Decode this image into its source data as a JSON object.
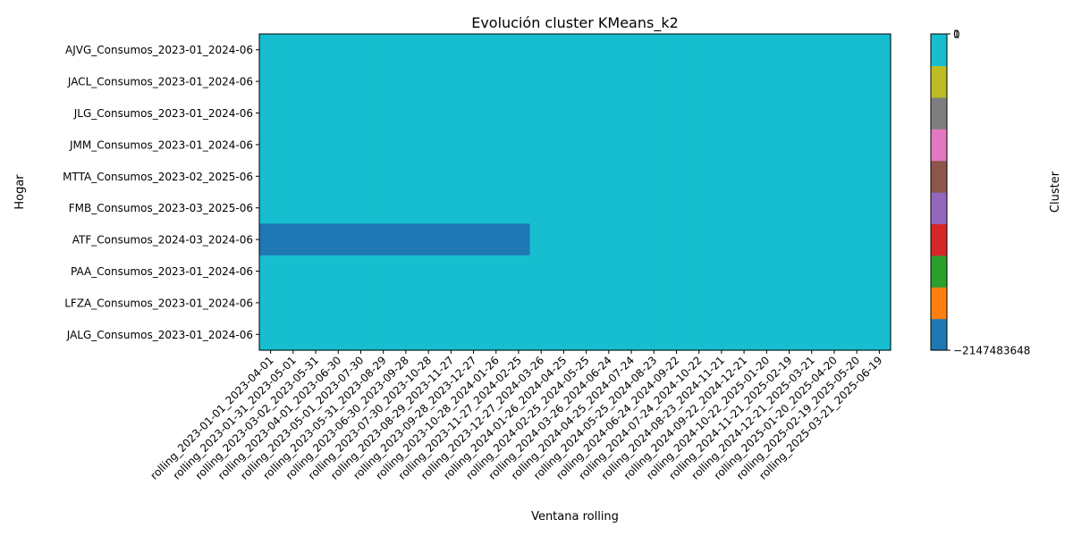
{
  "chart_data": {
    "type": "heatmap",
    "title": "Evolución cluster KMeans_k2",
    "xlabel": "Ventana rolling",
    "ylabel": "Hogar",
    "colorbar_label": "Cluster",
    "colorbar_ticks": [
      "0",
      "1",
      "−2147483648"
    ],
    "x": [
      "rolling_2023-01-01_2023-04-01",
      "rolling_2023-01-31_2023-05-01",
      "rolling_2023-03-02_2023-05-31",
      "rolling_2023-04-01_2023-06-30",
      "rolling_2023-05-01_2023-07-30",
      "rolling_2023-05-31_2023-08-29",
      "rolling_2023-06-30_2023-09-28",
      "rolling_2023-07-30_2023-10-28",
      "rolling_2023-08-29_2023-11-27",
      "rolling_2023-09-28_2023-12-27",
      "rolling_2023-10-28_2024-01-26",
      "rolling_2023-11-27_2024-02-25",
      "rolling_2023-12-27_2024-03-26",
      "rolling_2024-01-26_2024-04-25",
      "rolling_2024-02-25_2024-05-25",
      "rolling_2024-03-26_2024-06-24",
      "rolling_2024-04-25_2024-07-24",
      "rolling_2024-05-25_2024-08-23",
      "rolling_2024-06-24_2024-09-22",
      "rolling_2024-07-24_2024-10-22",
      "rolling_2024-08-23_2024-11-21",
      "rolling_2024-09-22_2024-12-21",
      "rolling_2024-10-22_2025-01-20",
      "rolling_2024-11-21_2025-02-19",
      "rolling_2024-12-21_2025-03-21",
      "rolling_2025-01-20_2025-04-20",
      "rolling_2025-02-19_2025-05-20",
      "rolling_2025-03-21_2025-06-19"
    ],
    "y": [
      "AJVG_Consumos_2023-01_2024-06",
      "JACL_Consumos_2023-01_2024-06",
      "JLG_Consumos_2023-01_2024-06",
      "JMM_Consumos_2023-01_2024-06",
      "MTTA_Consumos_2023-02_2025-06",
      "FMB_Consumos_2023-03_2025-06",
      "ATF_Consumos_2024-03_2024-06",
      "PAA_Consumos_2023-01_2024-06",
      "LFZA_Consumos_2023-01_2024-06",
      "JALG_Consumos_2023-01_2024-06"
    ],
    "values": [
      [
        1,
        1,
        1,
        1,
        1,
        1,
        1,
        1,
        1,
        1,
        1,
        1,
        1,
        1,
        1,
        1,
        1,
        1,
        1,
        1,
        1,
        1,
        1,
        1,
        1,
        1,
        1,
        1
      ],
      [
        1,
        1,
        1,
        1,
        1,
        1,
        1,
        1,
        1,
        1,
        1,
        1,
        1,
        1,
        1,
        1,
        1,
        1,
        1,
        1,
        1,
        1,
        1,
        1,
        1,
        1,
        1,
        1
      ],
      [
        1,
        1,
        1,
        1,
        1,
        1,
        1,
        1,
        1,
        1,
        1,
        1,
        1,
        1,
        1,
        1,
        1,
        1,
        1,
        1,
        1,
        1,
        1,
        1,
        1,
        1,
        1,
        1
      ],
      [
        1,
        1,
        1,
        1,
        1,
        1,
        1,
        1,
        1,
        1,
        1,
        1,
        1,
        1,
        1,
        1,
        1,
        1,
        1,
        1,
        1,
        1,
        1,
        1,
        1,
        1,
        1,
        1
      ],
      [
        1,
        1,
        1,
        1,
        1,
        1,
        1,
        1,
        1,
        1,
        1,
        1,
        1,
        1,
        1,
        1,
        1,
        1,
        1,
        1,
        1,
        1,
        1,
        1,
        1,
        1,
        1,
        1
      ],
      [
        1,
        1,
        1,
        1,
        1,
        1,
        1,
        1,
        1,
        1,
        1,
        1,
        1,
        1,
        1,
        1,
        1,
        1,
        1,
        1,
        1,
        1,
        1,
        1,
        1,
        1,
        1,
        1
      ],
      [
        0,
        0,
        0,
        0,
        0,
        0,
        0,
        0,
        0,
        0,
        0,
        0,
        1,
        1,
        1,
        1,
        1,
        1,
        1,
        1,
        1,
        1,
        1,
        1,
        1,
        1,
        1,
        1
      ],
      [
        1,
        1,
        1,
        1,
        1,
        1,
        1,
        1,
        1,
        1,
        1,
        1,
        1,
        1,
        1,
        1,
        1,
        1,
        1,
        1,
        1,
        1,
        1,
        1,
        1,
        1,
        1,
        1
      ],
      [
        1,
        1,
        1,
        1,
        1,
        1,
        1,
        1,
        1,
        1,
        1,
        1,
        1,
        1,
        1,
        1,
        1,
        1,
        1,
        1,
        1,
        1,
        1,
        1,
        1,
        1,
        1,
        1
      ],
      [
        1,
        1,
        1,
        1,
        1,
        1,
        1,
        1,
        1,
        1,
        1,
        1,
        1,
        1,
        1,
        1,
        1,
        1,
        1,
        1,
        1,
        1,
        1,
        1,
        1,
        1,
        1,
        1
      ]
    ],
    "value_colors": {
      "0": "#1f77b4",
      "1": "#17becf"
    },
    "colorbar_colors": [
      "#1f77b4",
      "#ff7f0e",
      "#2ca02c",
      "#d62728",
      "#9467bd",
      "#8c564b",
      "#e377c2",
      "#7f7f7f",
      "#bcbd22",
      "#17becf"
    ],
    "grid": false
  }
}
